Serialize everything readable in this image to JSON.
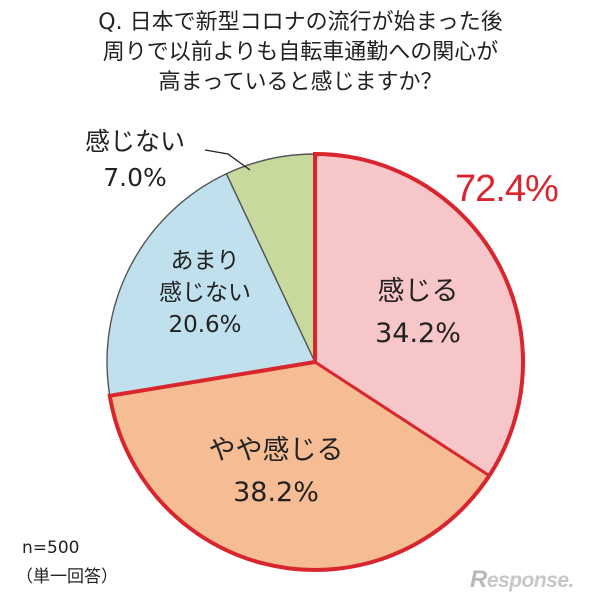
{
  "title": {
    "line1": "Q. 日本で新型コロナの流行が始まった後",
    "line2": "周りで以前よりも自転車通勤への関心が",
    "line3": "高まっていると感じますか？"
  },
  "chart_data": {
    "type": "pie",
    "slices": [
      {
        "label_lines": [
          "感じる"
        ],
        "value_text": "34.2%",
        "value": 34.2,
        "color": "#f7c6c9"
      },
      {
        "label_lines": [
          "やや感じる"
        ],
        "value_text": "38.2%",
        "value": 38.2,
        "color": "#f6bd94"
      },
      {
        "label_lines": [
          "あまり",
          "感じない"
        ],
        "value_text": "20.6%",
        "value": 20.6,
        "color": "#bfe0ec"
      },
      {
        "label_lines": [
          "感じない"
        ],
        "value_text": "7.0%",
        "value": 7.0,
        "color": "#c7d99d"
      }
    ],
    "highlight_total": "72.4%",
    "highlight_color": "#d9262e"
  },
  "footnote": {
    "n": "n=500",
    "note": "（単一回答）"
  },
  "brand": {
    "mark": "R",
    "text": "esponse."
  }
}
